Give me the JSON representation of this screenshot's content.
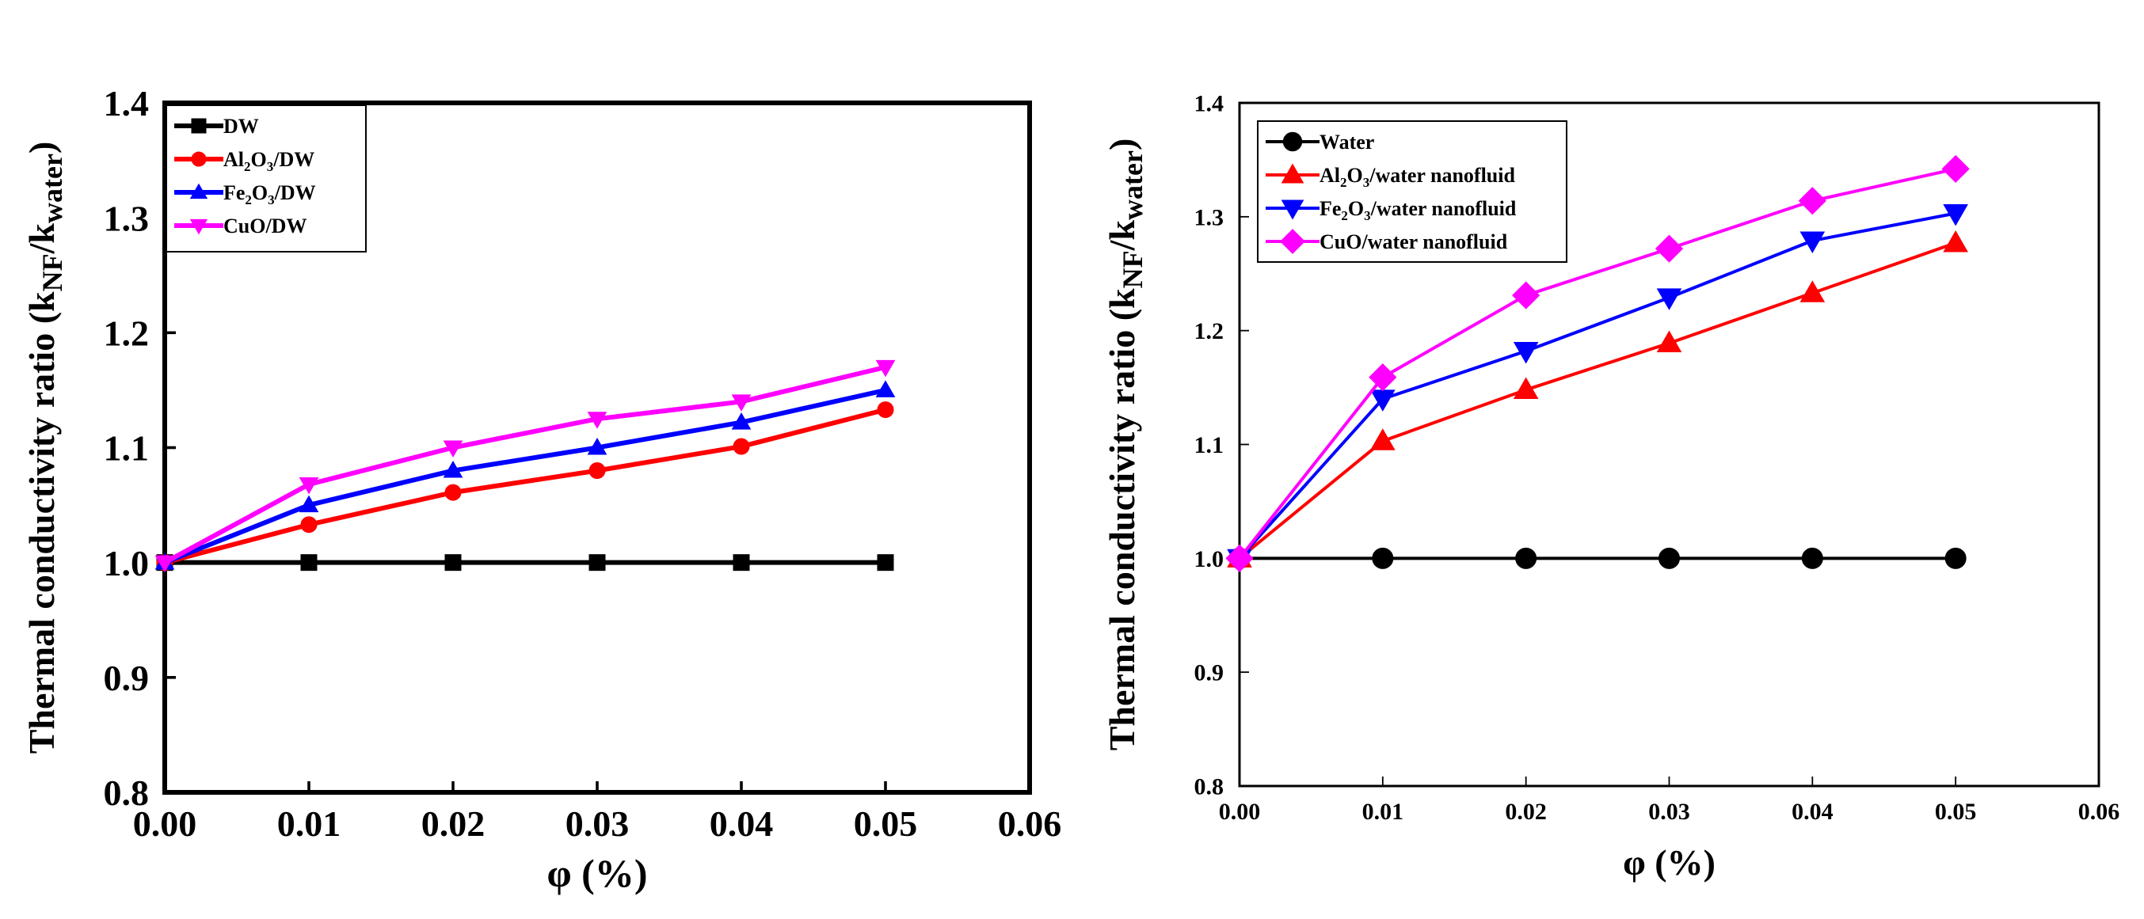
{
  "chart_data": [
    {
      "type": "line",
      "title": "",
      "xlabel": "φ (%)",
      "ylabel_main": "Thermal conductivity ratio (k",
      "ylabel_sub1": "NF",
      "ylabel_mid": "/k",
      "ylabel_sub2": "water",
      "ylabel_end": ")",
      "xlim": [
        0,
        0.06
      ],
      "ylim": [
        0.8,
        1.4
      ],
      "xticks": [
        "0.00",
        "0.01",
        "0.02",
        "0.03",
        "0.04",
        "0.05",
        "0.06"
      ],
      "yticks": [
        "0.8",
        "0.9",
        "1.0",
        "1.1",
        "1.2",
        "1.3",
        "1.4"
      ],
      "grid": false,
      "legend_position": "top-left",
      "x": [
        0,
        0.01,
        0.02,
        0.03,
        0.04,
        0.05
      ],
      "series": [
        {
          "name": "DW",
          "legend": {
            "p1": "DW"
          },
          "color": "#000000",
          "marker": "square",
          "values": [
            1.0,
            1.0,
            1.0,
            1.0,
            1.0,
            1.0
          ]
        },
        {
          "name": "Al2O3/DW",
          "legend": {
            "p1": "Al",
            "s1": "2",
            "p2": "O",
            "s2": "3",
            "p3": "/DW"
          },
          "color": "#ff0000",
          "marker": "circle",
          "values": [
            1.0,
            1.033,
            1.061,
            1.08,
            1.101,
            1.133
          ]
        },
        {
          "name": "Fe2O3/DW",
          "legend": {
            "p1": "Fe",
            "s1": "2",
            "p2": "O",
            "s2": "3",
            "p3": "/DW"
          },
          "color": "#0000ff",
          "marker": "triangle-up",
          "values": [
            1.0,
            1.05,
            1.08,
            1.1,
            1.122,
            1.15
          ]
        },
        {
          "name": "CuO/DW",
          "legend": {
            "p1": "CuO/DW"
          },
          "color": "#ff00ff",
          "marker": "triangle-down",
          "values": [
            1.0,
            1.068,
            1.1,
            1.125,
            1.14,
            1.17
          ]
        }
      ]
    },
    {
      "type": "line",
      "title": "",
      "xlabel": "φ (%)",
      "ylabel_main": "Thermal conductivity ratio (k",
      "ylabel_sub1": "NF",
      "ylabel_mid": "/k",
      "ylabel_sub2": "water",
      "ylabel_end": ")",
      "xlim": [
        0,
        0.06
      ],
      "ylim": [
        0.8,
        1.4
      ],
      "xticks": [
        "0.00",
        "0.01",
        "0.02",
        "0.03",
        "0.04",
        "0.05",
        "0.06"
      ],
      "yticks": [
        "0.8",
        "0.9",
        "1.0",
        "1.1",
        "1.2",
        "1.3",
        "1.4"
      ],
      "grid": false,
      "legend_position": "top-left",
      "x": [
        0,
        0.01,
        0.02,
        0.03,
        0.04,
        0.05
      ],
      "series": [
        {
          "name": "Water",
          "legend": {
            "p1": "Water"
          },
          "color": "#000000",
          "marker": "circle",
          "values": [
            1.0,
            1.0,
            1.0,
            1.0,
            1.0,
            1.0
          ]
        },
        {
          "name": "Al2O3/water nanofluid",
          "legend": {
            "p1": "Al",
            "s1": "2",
            "p2": "O",
            "s2": "3",
            "p3": "/water nanofluid"
          },
          "color": "#ff0000",
          "marker": "triangle-up",
          "values": [
            1.0,
            1.103,
            1.148,
            1.189,
            1.233,
            1.277
          ]
        },
        {
          "name": "Fe2O3/water nanofluid",
          "legend": {
            "p1": "Fe",
            "s1": "2",
            "p2": "O",
            "s2": "3",
            "p3": "/water nanofluid"
          },
          "color": "#0000ff",
          "marker": "triangle-down",
          "values": [
            1.0,
            1.14,
            1.182,
            1.229,
            1.279,
            1.303
          ]
        },
        {
          "name": "CuO/water nanofluid",
          "legend": {
            "p1": "CuO/water nanofluid"
          },
          "color": "#ff00ff",
          "marker": "diamond",
          "values": [
            1.0,
            1.159,
            1.231,
            1.272,
            1.314,
            1.342
          ]
        }
      ]
    }
  ]
}
